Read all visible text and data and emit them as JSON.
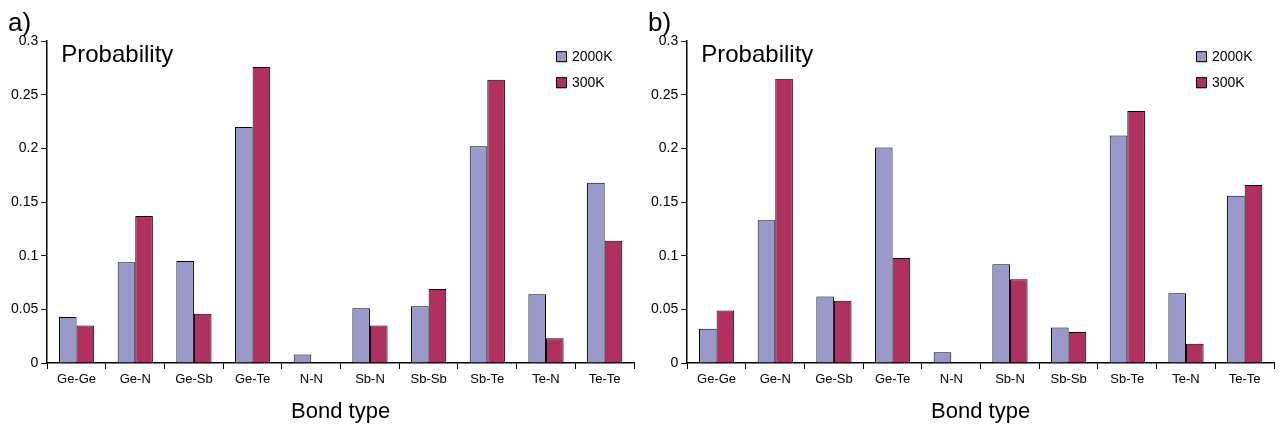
{
  "chart_data": [
    {
      "type": "bar",
      "title": "a)",
      "ylabel": "Probability",
      "xlabel": "Bond type",
      "categories": [
        "Ge-Ge",
        "Ge-N",
        "Ge-Sb",
        "Ge-Te",
        "N-N",
        "Sb-N",
        "Sb-Sb",
        "Sb-Te",
        "Te-N",
        "Te-Te"
      ],
      "series": [
        {
          "name": "2000K",
          "color": "#9999cc",
          "values": [
            0.043,
            0.094,
            0.095,
            0.22,
            0.008,
            0.051,
            0.053,
            0.202,
            0.064,
            0.168
          ]
        },
        {
          "name": "300K",
          "color": "#b03060",
          "values": [
            0.035,
            0.137,
            0.046,
            0.276,
            0,
            0.035,
            0.069,
            0.264,
            0.023,
            0.114
          ]
        }
      ],
      "ylim": [
        0,
        0.3
      ],
      "yticks": [
        0,
        0.05,
        0.1,
        0.15,
        0.2,
        0.25,
        0.3
      ],
      "grid": false,
      "legend": "top right"
    },
    {
      "type": "bar",
      "title": "b)",
      "ylabel": "Probability",
      "xlabel": "Bond type",
      "categories": [
        "Ge-Ge",
        "Ge-N",
        "Ge-Sb",
        "Ge-Te",
        "N-N",
        "Sb-N",
        "Sb-Sb",
        "Sb-Te",
        "Te-N",
        "Te-Te"
      ],
      "series": [
        {
          "name": "2000K",
          "color": "#9999cc",
          "values": [
            0.032,
            0.133,
            0.062,
            0.201,
            0.01,
            0.092,
            0.033,
            0.212,
            0.065,
            0.156
          ]
        },
        {
          "name": "300K",
          "color": "#b03060",
          "values": [
            0.049,
            0.265,
            0.058,
            0.098,
            0,
            0.078,
            0.029,
            0.235,
            0.018,
            0.166
          ]
        }
      ],
      "ylim": [
        0,
        0.3
      ],
      "yticks": [
        0,
        0.05,
        0.1,
        0.15,
        0.2,
        0.25,
        0.3
      ],
      "grid": false,
      "legend": "top right"
    }
  ]
}
